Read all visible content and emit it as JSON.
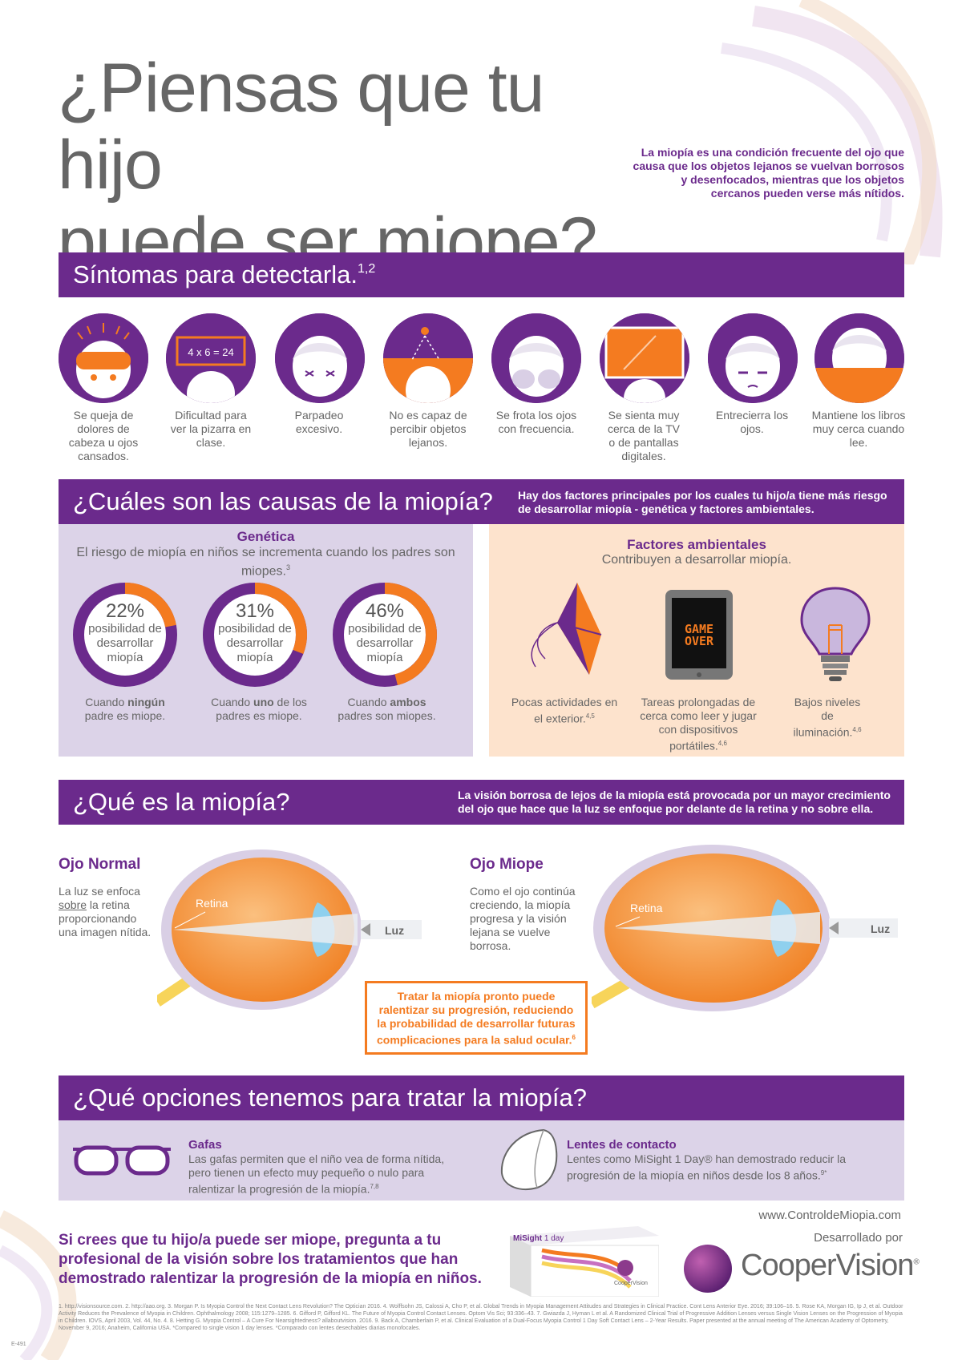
{
  "header": {
    "title_line1": "¿Piensas que tu hijo",
    "title_line2": "puede ser miope?",
    "intro": "La miopía es una condición frecuente del ojo que causa que los objetos lejanos se vuelvan borrosos y desenfocados, mientras que los objetos cercanos pueden verse más nítidos."
  },
  "symptoms": {
    "title": "Síntomas para detectarla.",
    "title_sup": "1,2",
    "board_text": "4 x 6 = 24",
    "items": [
      "Se queja de dolores de cabeza u ojos cansados.",
      "Dificultad para ver la pizarra en clase.",
      "Parpadeo excesivo.",
      "No es capaz de percibir objetos lejanos.",
      "Se frota los ojos con frecuencia.",
      "Se sienta muy cerca de la TV o de pantallas digitales.",
      "Entrecierra los ojos.",
      "Mantiene los libros muy cerca cuando lee."
    ]
  },
  "causes": {
    "title": "¿Cuáles son las causas de la miopía?",
    "note": "Hay dos factores principales por los cuales tu hijo/a tiene más riesgo de desarrollar miopía - genética y factores ambientales.",
    "genetics": {
      "title": "Genética",
      "subtitle": "El riesgo de miopía en niños se incrementa cuando los padres son miopes.",
      "subtitle_sup": "3",
      "rings": [
        {
          "pct": "22%",
          "text": "posibilidad de desarrollar miopía",
          "value": 22,
          "cap_pre": "Cuando ",
          "cap_bold": "ningún",
          "cap_post": " padre es miope."
        },
        {
          "pct": "31%",
          "text": "posibilidad de desarrollar miopía",
          "value": 31,
          "cap_pre": "Cuando ",
          "cap_bold": "uno",
          "cap_post": " de los padres es miope."
        },
        {
          "pct": "46%",
          "text": "posibilidad de desarrollar miopía",
          "value": 46,
          "cap_pre": "Cuando ",
          "cap_bold": "ambos",
          "cap_post": " padres son miopes."
        }
      ]
    },
    "environment": {
      "title": "Factores ambientales",
      "subtitle": "Contribuyen a desarrollar miopía.",
      "game_over_1": "GAME",
      "game_over_2": "OVER",
      "items": [
        {
          "text": "Pocas actividades en el exterior.",
          "sup": "4,5"
        },
        {
          "text": "Tareas prolongadas de cerca como leer y jugar con dispositivos portátiles.",
          "sup": "4,6"
        },
        {
          "text": "Bajos niveles de iluminación.",
          "sup": "4,6"
        }
      ]
    }
  },
  "what": {
    "title": "¿Qué es la miopía?",
    "note": "La visión borrosa de lejos de la miopía está provocada por un mayor crecimiento del ojo que hace que la luz se enfoque por delante de la retina y no sobre ella.",
    "normal": {
      "title": "Ojo Normal",
      "text_pre": "La luz se enfoca ",
      "text_u": "sobre",
      "text_post": " la retina proporcionando una imagen nítida."
    },
    "myopic": {
      "title": "Ojo Miope",
      "text": "Como el ojo continúa creciendo, la miopía progresa y la visión lejana se vuelve borrosa."
    },
    "retina_label": "Retina",
    "light_label": "Luz",
    "callout": "Tratar la miopía pronto puede ralentizar su progresión, reduciendo la probabilidad de desarrollar futuras complicaciones para la salud ocular.",
    "callout_sup": "6"
  },
  "options": {
    "title": "¿Qué opciones tenemos para tratar la miopía?",
    "glasses": {
      "title": "Gafas",
      "text": "Las gafas permiten que el niño vea de forma nítida, pero tienen un efecto muy pequeño o nulo para ralentizar la progresión de la miopía.",
      "sup": "7,8"
    },
    "contacts": {
      "title": "Lentes de contacto",
      "text": "Lentes como MiSight 1 Day® han demostrado reducir la progresión de la miopía en niños desde los 8 años.",
      "sup": "9*"
    }
  },
  "footer": {
    "cta": "Si crees que tu hijo/a puede ser miope, pregunta a tu profesional de la visión sobre los tratamientos que han demostrado ralentizar la progresión de la miopía en niños.",
    "url": "www.ControldeMiopia.com",
    "developed_by": "Desarrollado por",
    "brand": "CooperVision",
    "brand_reg": "®",
    "box_brand": "MiSight",
    "box_sub": "1 day",
    "box_maker": "CooperVision",
    "code": "E-491",
    "references": "1. http://visionsource.com. 2. http://aao.org. 3. Morgan P. Is Myopia Control the Next Contact Lens Revolution? The Optician 2016. 4. Wolffsohn JS, Calossi A, Cho P, et al. Global Trends in Myopia Management Attitudes and Strategies in Clinical Practice. Cont Lens Anterior Eye. 2016; 39:106–16. 5. Rose KA, Morgan IG, Ip J, et al. Outdoor Activity Reduces the Prevalence of Myopia in Children. Ophthalmology 2008; 115:1279–1285. 6. Gifford P, Gifford KL. The Future of Myopia Control Contact Lenses. Optom Vis Sci; 93:336–43. 7. Gwiazda J, Hyman L et al. A Randomized Clinical Trial of Progressive Addition Lenses versus Single Vision Lenses on the Progression of Myopia in Children. IOVS, April 2003, Vol. 44, No. 4. 8. Hetting G. Myopia Control – A Cure For Nearsightedness? allaboutvision. 2016. 9. Back A, Chamberlain P, et al. Clinical Evaluation of a Dual-Focus Myopia Control 1 Day Soft Contact Lens – 2-Year Results. Paper presented at the annual meeting of The American Academy of Optometry, November 9, 2016; Anaheim, California USA. *Compared to single vision 1 day lenses. *Comparado con lentes desechables diarias monofocales."
  },
  "colors": {
    "purple": "#6b2a8c",
    "orange": "#f47b20",
    "lavender": "#dcd3e8",
    "peach": "#fde3cd"
  }
}
